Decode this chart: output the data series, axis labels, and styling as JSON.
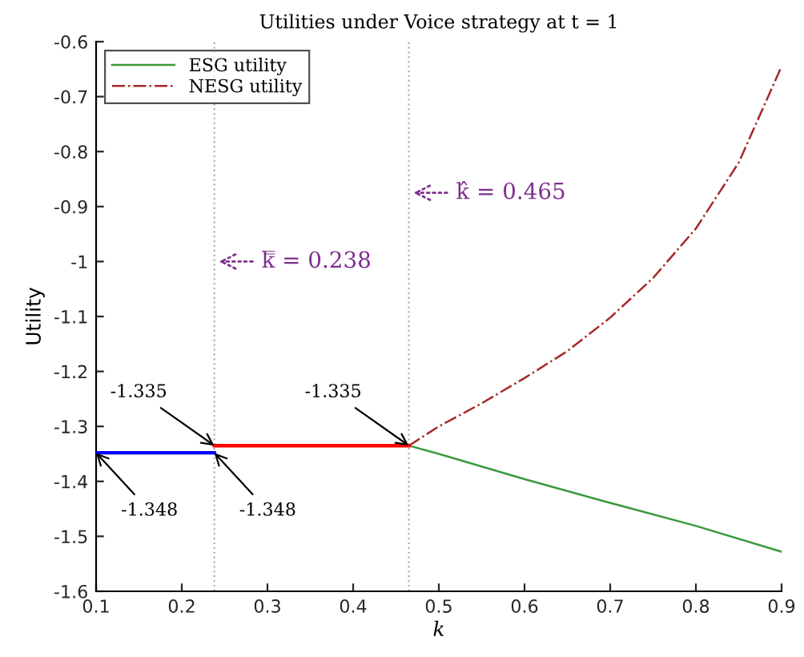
{
  "chart_data": {
    "type": "line",
    "title": "Utilities under Voice strategy at t = 1",
    "xlabel": "k",
    "ylabel": "Utility",
    "xlim": [
      0.1,
      0.9
    ],
    "xticks": [
      0.1,
      0.2,
      0.3,
      0.4,
      0.5,
      0.6,
      0.7,
      0.8,
      0.9
    ],
    "ylim": [
      -1.6,
      -0.6
    ],
    "yticks": [
      -1.6,
      -1.5,
      -1.4,
      -1.3,
      -1.2,
      -1.1,
      -1,
      -0.9,
      -0.8,
      -0.7,
      -0.6
    ],
    "legend": "top left",
    "grid": false,
    "series": [
      {
        "name": "ESG utility",
        "color": "#3c9a3c",
        "line_style": "solid",
        "x": [
          0.465,
          0.5,
          0.6,
          0.695,
          0.8,
          0.9
        ],
        "values": [
          -1.335,
          -1.35,
          -1.396,
          -1.437,
          -1.481,
          -1.528
        ]
      },
      {
        "name": "NESG utility",
        "color": "#a52a2a",
        "line_style": "dashdot",
        "x": [
          0.465,
          0.5,
          0.55,
          0.6,
          0.65,
          0.7,
          0.75,
          0.8,
          0.85,
          0.9
        ],
        "values": [
          -1.335,
          -1.3,
          -1.258,
          -1.212,
          -1.163,
          -1.102,
          -1.03,
          -0.94,
          -0.82,
          -0.645
        ]
      },
      {
        "color": "#0000ff",
        "line_style": "solid",
        "x": [
          0.1,
          0.238
        ],
        "values": [
          -1.348,
          -1.348
        ]
      },
      {
        "color": "#ff0000",
        "line_style": "solid",
        "x": [
          0.238,
          0.465
        ],
        "values": [
          -1.335,
          -1.335
        ]
      }
    ],
    "ref_lines": [
      {
        "axis": "x",
        "value": 0.238,
        "label": "k̿ = 0.238",
        "color": "#7e2f8e",
        "line_style": "dotted"
      },
      {
        "axis": "x",
        "value": 0.465,
        "label": "k̂ = 0.465",
        "color": "#7e2f8e",
        "line_style": "dotted"
      }
    ],
    "annotations": [
      {
        "text": "-1.335",
        "x": 0.238,
        "y": -1.335
      },
      {
        "text": "-1.335",
        "x": 0.465,
        "y": -1.335
      },
      {
        "text": "-1.348",
        "x": 0.1,
        "y": -1.348
      },
      {
        "text": "-1.348",
        "x": 0.238,
        "y": -1.348
      }
    ]
  }
}
